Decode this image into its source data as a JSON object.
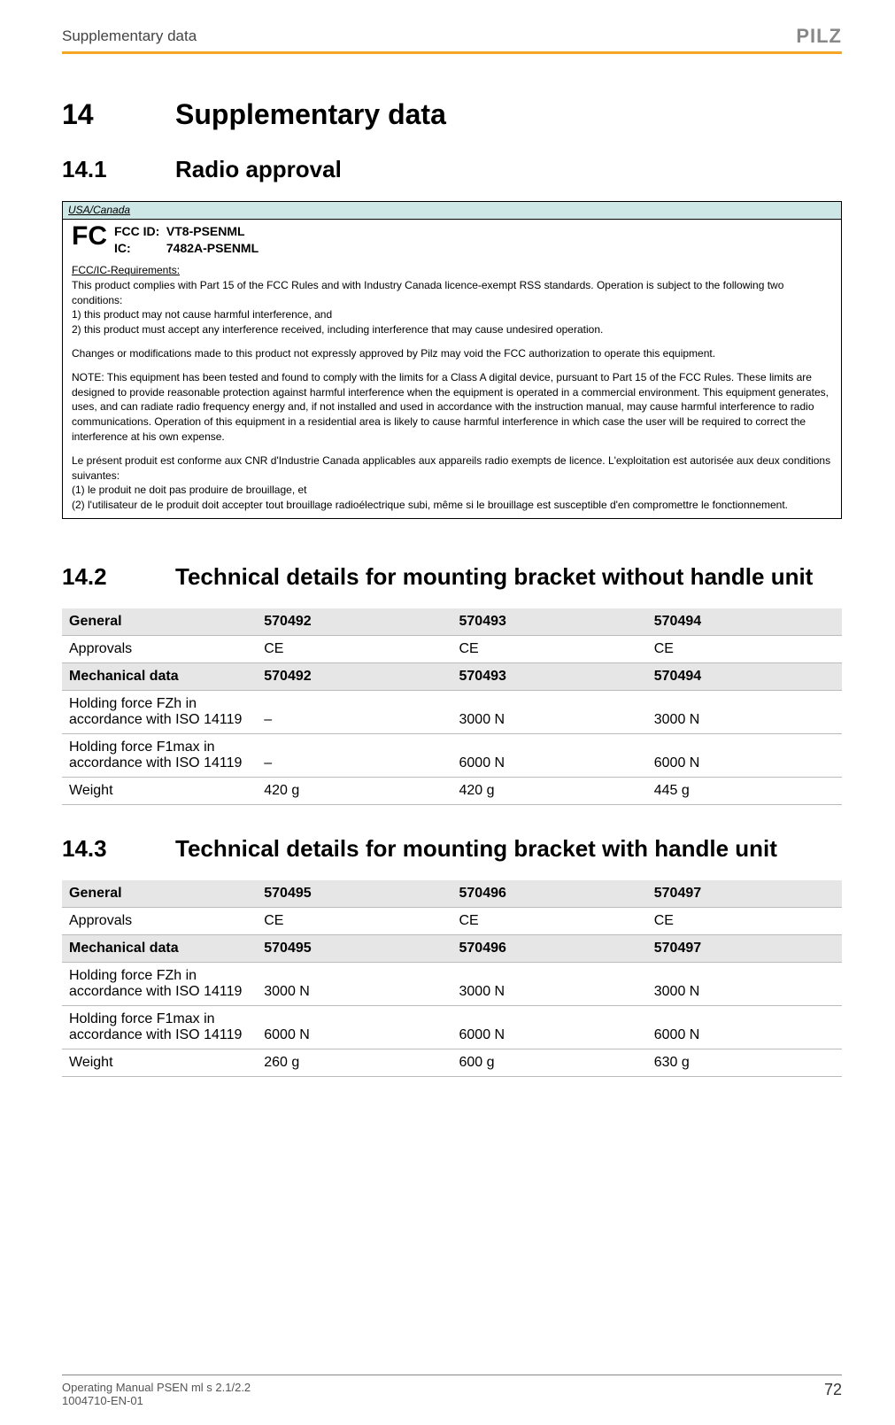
{
  "header": {
    "section_name": "Supplementary data",
    "logo_text": "PILZ"
  },
  "h1": {
    "num": "14",
    "title": "Supplementary data"
  },
  "s141": {
    "num": "14.1",
    "title": "Radio approval",
    "box_header": "USA/Canada",
    "fcc_label": "FCC ID:",
    "fcc_id": "VT8-PSENML",
    "ic_label": "IC:",
    "ic_id": "7482A-PSENML",
    "req_title": "FCC/IC-Requirements:",
    "p1": "This product complies with Part 15 of the FCC Rules and with Industry Canada licence-exempt RSS standards. Operation is subject to the following two conditions:\n1) this product may not cause harmful interference, and\n2) this product must accept any interference received, including interference that may cause undesired operation.",
    "p2": "Changes or modifications made to this product not expressly approved by Pilz may void the FCC authorization to operate this equipment.",
    "p3": "NOTE: This equipment has been tested and found to comply with the limits for a Class A digital device, pursuant to Part 15 of the FCC Rules. These limits are designed to provide reasonable protection against harmful interference when the equipment is operated in a commercial environment. This equipment generates, uses, and can radiate radio frequency energy and, if not installed and used in accordance with the instruction manual, may cause harmful interference to radio communications. Operation of this equipment in a residential area is likely to cause harmful interference in which case the user will be required to correct the interference at his own expense.",
    "p4": "Le présent produit est conforme aux CNR d'Industrie Canada applicables aux appareils radio exempts de licence. L'exploitation est autorisée aux deux conditions suivantes:\n(1) le produit ne doit pas produire de brouillage, et\n(2) l'utilisateur de le produit doit accepter tout brouillage radioélectrique subi, même si le brouillage est susceptible d'en compromettre le fonctionnement."
  },
  "s142": {
    "num": "14.2",
    "title": "Technical details for mounting bracket without handle unit",
    "general_label": "General",
    "mech_label": "Mechanical data",
    "cols": [
      "570492",
      "570493",
      "570494"
    ],
    "rows": [
      {
        "label": "Approvals",
        "v": [
          "CE",
          "CE",
          "CE"
        ]
      }
    ],
    "mech_rows": [
      {
        "label": "Holding force FZh in accordance with ISO 14119",
        "v": [
          "–",
          "3000 N",
          "3000 N"
        ]
      },
      {
        "label": "Holding force F1max in accordance with ISO 14119",
        "v": [
          "–",
          "6000 N",
          "6000 N"
        ]
      },
      {
        "label": "Weight",
        "v": [
          "420 g",
          "420 g",
          "445 g"
        ]
      }
    ]
  },
  "s143": {
    "num": "14.3",
    "title": "Technical details for mounting bracket with handle unit",
    "general_label": "General",
    "mech_label": "Mechanical data",
    "cols": [
      "570495",
      "570496",
      "570497"
    ],
    "rows": [
      {
        "label": "Approvals",
        "v": [
          "CE",
          "CE",
          "CE"
        ]
      }
    ],
    "mech_rows": [
      {
        "label": "Holding force FZh in accordance with ISO 14119",
        "v": [
          "3000 N",
          "3000 N",
          "3000 N"
        ]
      },
      {
        "label": "Holding force F1max in accordance with ISO 14119",
        "v": [
          "6000 N",
          "6000 N",
          "6000 N"
        ]
      },
      {
        "label": "Weight",
        "v": [
          "260 g",
          "600 g",
          "630 g"
        ]
      }
    ]
  },
  "footer": {
    "line1": "Operating Manual PSEN ml s 2.1/2.2",
    "line2": "1004710-EN-01",
    "page": "72"
  }
}
